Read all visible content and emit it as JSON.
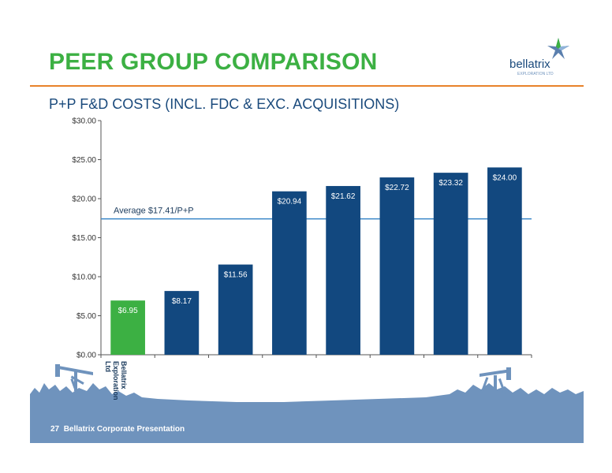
{
  "slide": {
    "title": "PEER GROUP COMPARISON",
    "page_number": "27",
    "footer_text": "Bellatrix Corporate Presentation"
  },
  "logo": {
    "name": "bellatrix",
    "tagline": "EXPLORATION LTD"
  },
  "colors": {
    "title_green": "#3cb043",
    "rule_orange": "#e8822a",
    "bar_blue": "#12487f",
    "bar_highlight_green": "#3cb043",
    "average_line": "#3a87c9",
    "footer_blue": "#6f93bd"
  },
  "chart_data": {
    "type": "bar",
    "title": "P+P F&D COSTS (INCL. FDC & EXC. ACQUISITIONS)",
    "categories": [
      "Bellatrix Exploration Ltd",
      "",
      "",
      "",
      "",
      "",
      "",
      ""
    ],
    "values": [
      6.95,
      8.17,
      11.56,
      20.94,
      21.62,
      22.72,
      23.32,
      24.0
    ],
    "value_labels": [
      "$6.95",
      "$8.17",
      "$11.56",
      "$20.94",
      "$21.62",
      "$22.72",
      "$23.32",
      "$24.00"
    ],
    "highlight_index": 0,
    "ylim": [
      0,
      30
    ],
    "yticks": [
      0,
      5,
      10,
      15,
      20,
      25,
      30
    ],
    "ytick_labels": [
      "$0.00",
      "$5.00",
      "$10.00",
      "$15.00",
      "$20.00",
      "$25.00",
      "$30.00"
    ],
    "average": {
      "value": 17.41,
      "label": "Average $17.41/P+P"
    },
    "xlabel": "",
    "ylabel": "",
    "grid": false,
    "legend": "none"
  }
}
